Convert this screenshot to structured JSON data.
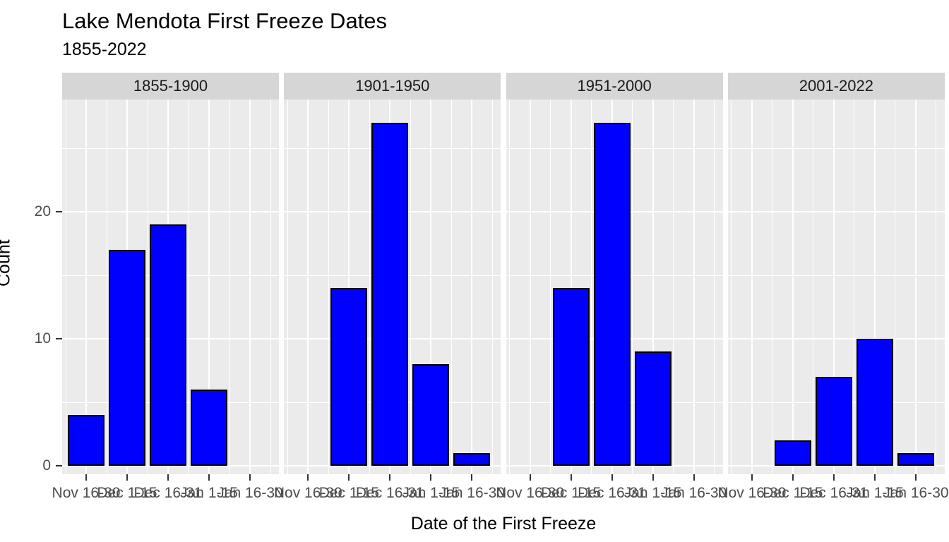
{
  "chart_data": {
    "type": "bar",
    "title": "Lake Mendota First Freeze Dates",
    "subtitle": "1855-2022",
    "xlabel": "Date of the First Freeze",
    "ylabel": "Count",
    "categories": [
      "Nov 16-30",
      "Dec 1-15",
      "Dec 16-31",
      "Jan 1-15",
      "Jan 16-30"
    ],
    "facets": [
      {
        "label": "1855-1900",
        "values": [
          4,
          17,
          19,
          6,
          null
        ]
      },
      {
        "label": "1901-1950",
        "values": [
          null,
          14,
          27,
          8,
          1
        ]
      },
      {
        "label": "1951-2000",
        "values": [
          null,
          14,
          27,
          9,
          null
        ]
      },
      {
        "label": "2001-2022",
        "values": [
          null,
          2,
          7,
          10,
          1
        ]
      }
    ],
    "y_ticks": [
      0,
      10,
      20
    ],
    "y_minor_ticks": [
      5,
      15,
      25
    ],
    "ylim": [
      0,
      28.5
    ],
    "grid": "on",
    "legend": "none",
    "colors": {
      "bar_fill": "#0000ff",
      "bar_stroke": "#000000",
      "panel_bg": "#ebebeb",
      "strip_bg": "#d6d6d6",
      "gridline": "#ffffff",
      "tick_mark": "#333333",
      "tick_label": "#4d4d4d",
      "text": "#000000"
    }
  }
}
